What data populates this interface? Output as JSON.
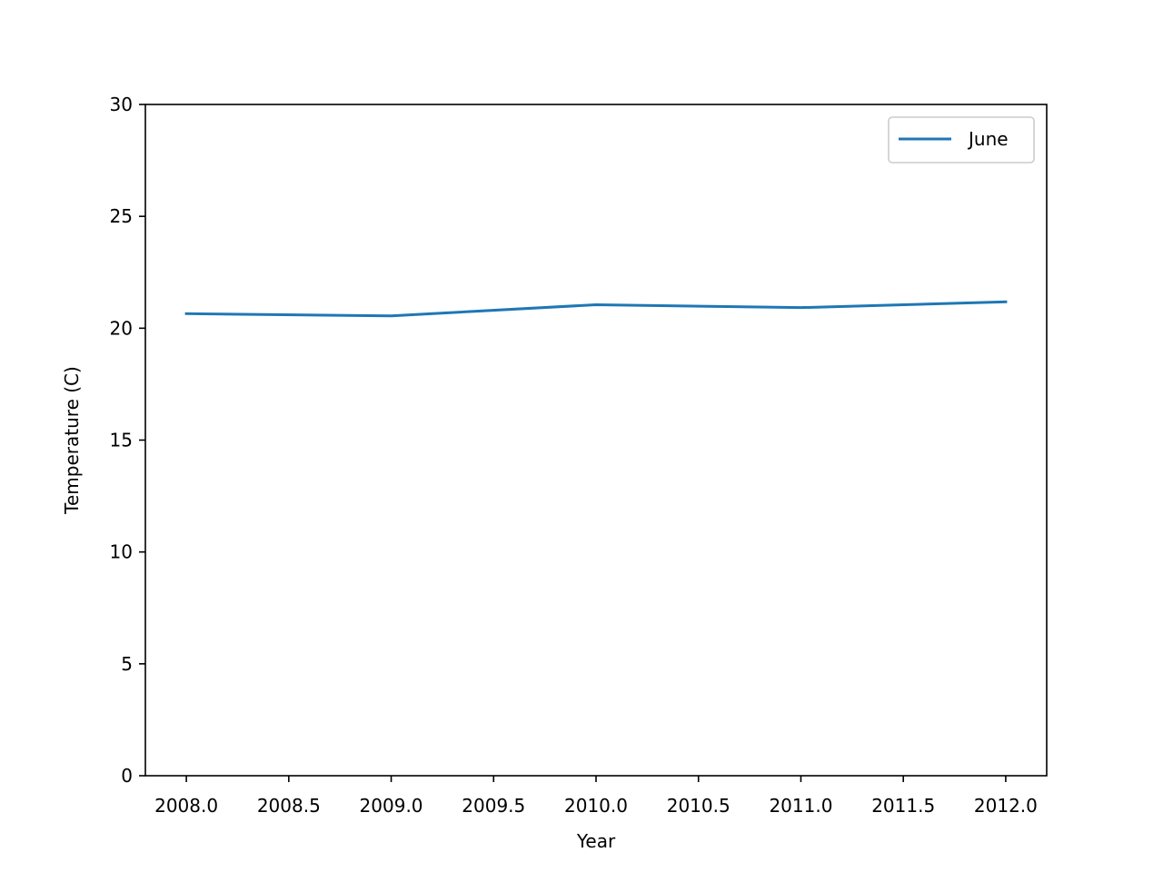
{
  "chart_data": {
    "type": "line",
    "title": "",
    "xlabel": "Year",
    "ylabel": "Temperature (C)",
    "xlim": [
      2007.8,
      2012.2
    ],
    "ylim": [
      0,
      30
    ],
    "xticks": [
      2008.0,
      2008.5,
      2009.0,
      2009.5,
      2010.0,
      2010.5,
      2011.0,
      2011.5,
      2012.0
    ],
    "xtick_labels": [
      "2008.0",
      "2008.5",
      "2009.0",
      "2009.5",
      "2010.0",
      "2010.5",
      "2011.0",
      "2011.5",
      "2012.0"
    ],
    "yticks": [
      0,
      5,
      10,
      15,
      20,
      25,
      30
    ],
    "ytick_labels": [
      "0",
      "5",
      "10",
      "15",
      "20",
      "25",
      "30"
    ],
    "grid": false,
    "legend_position": "top-right",
    "series": [
      {
        "name": "June",
        "color": "#1f77b4",
        "x": [
          2008,
          2009,
          2010,
          2011,
          2012
        ],
        "y": [
          20.65,
          20.55,
          21.05,
          20.92,
          21.18
        ]
      }
    ]
  }
}
